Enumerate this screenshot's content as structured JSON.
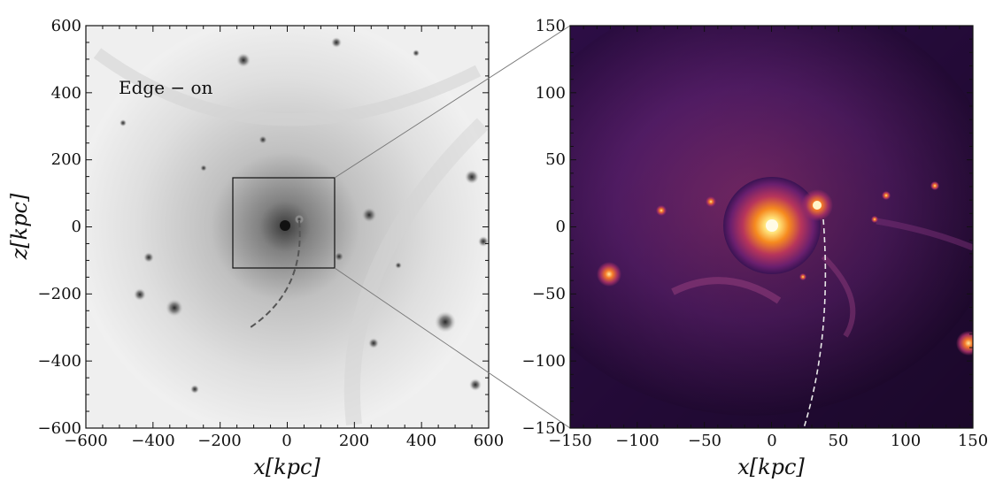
{
  "panels": {
    "left": {
      "annotation": "Edge − on",
      "x_axis_label": "x[kpc]",
      "y_axis_label": "z[kpc]",
      "x_ticks": [
        "−600",
        "−400",
        "−200",
        "0",
        "200",
        "400",
        "600"
      ],
      "y_ticks": [
        "600",
        "400",
        "200",
        "0",
        "−200",
        "−400",
        "−600"
      ],
      "colormap": "greyscale"
    },
    "right": {
      "x_axis_label": "x[kpc]",
      "x_ticks": [
        "−150",
        "−100",
        "−50",
        "0",
        "50",
        "100",
        "150"
      ],
      "y_ticks": [
        "150",
        "100",
        "50",
        "0",
        "−50",
        "−100",
        "−150"
      ],
      "colormap": "inferno"
    }
  },
  "colors": {
    "left_background": "#f2f2f2",
    "right_background": "#3a1353",
    "core": "#fff1b0",
    "trajectory_left": "#555555",
    "trajectory_right": "#e8e8e8"
  }
}
